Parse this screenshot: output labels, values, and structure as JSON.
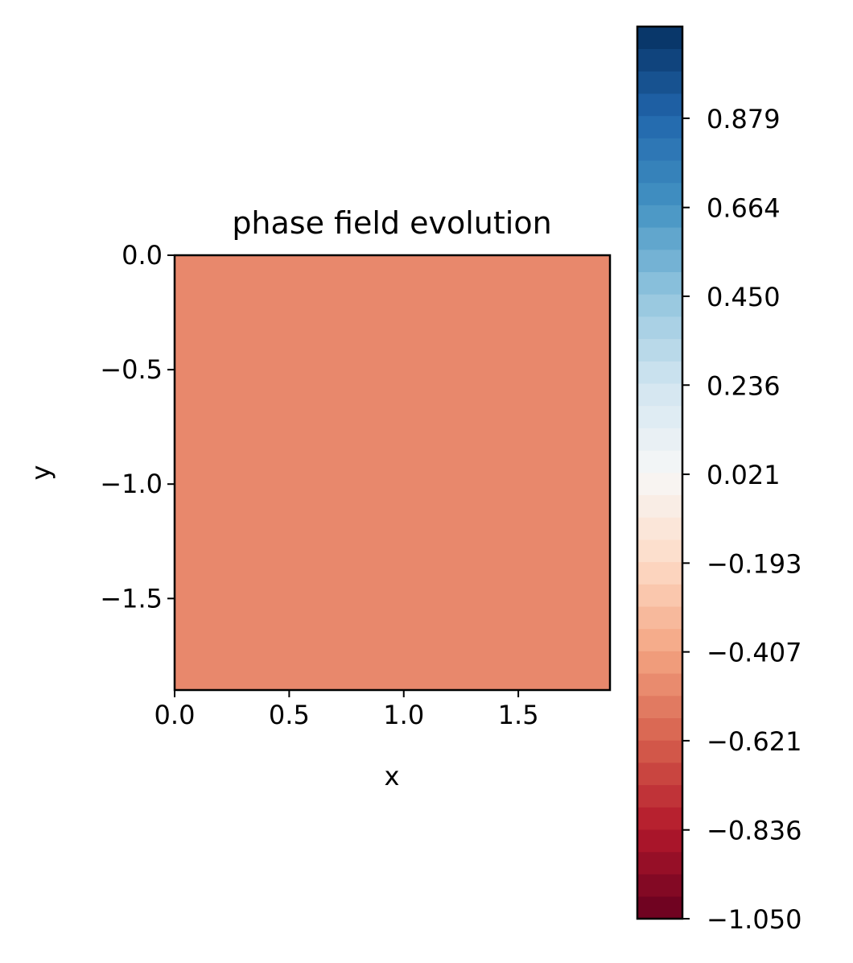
{
  "chart_data": {
    "type": "heatmap",
    "title": "phase field evolution",
    "xlabel": "x",
    "ylabel": "y",
    "xlim": [
      0.0,
      1.9
    ],
    "ylim": [
      -1.9,
      0.0
    ],
    "x_tick_labels": [
      "0.0",
      "0.5",
      "1.0",
      "1.5"
    ],
    "y_tick_labels": [
      "0.0",
      "−0.5",
      "−1.0",
      "−1.5"
    ],
    "field_value": -0.5,
    "field_color": "#e8886c",
    "colorbar": {
      "cmap": "RdBu",
      "range": [
        -1.05,
        1.1
      ],
      "levels": 40,
      "tick_labels": [
        "−1.050",
        "−0.836",
        "−0.621",
        "−0.407",
        "−0.193",
        "0.021",
        "0.236",
        "0.450",
        "0.664",
        "0.879"
      ]
    }
  }
}
